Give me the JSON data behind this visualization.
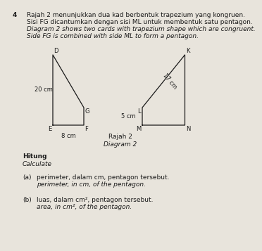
{
  "title_number": "4",
  "title_text_line1": "Rajah 2 menunjukkan dua kad berbentuk trapezium yang kongruen.",
  "title_text_line2": "Sisi FG dicantumkan dengan sisi ML untuk membentuk satu pentagon.",
  "title_text_line3": "Diagram 2 shows two cards with trapezium shape which are congruent.",
  "title_text_line4": "Side FG is combined with side ML to form a pentagon.",
  "caption_line1": "Rajah 2",
  "caption_line2": "Diagram 2",
  "question_hitung": "Hitung",
  "question_calculate": "Calculate",
  "qa_label": "(a)",
  "qa_text1": "perimeter, dalam cm, pentagon tersebut.",
  "qa_text2": "perimeter, in cm, of the pentagon.",
  "qb_label": "(b)",
  "qb_text1": "luas, dalam cm², pentagon tersebut.",
  "qb_text2": "area, in cm², of the pentagon.",
  "label_20cm": "20 cm",
  "label_8cm": "8 cm",
  "label_17cm": "17 cm",
  "label_5cm": "5 cm",
  "label_D": "D",
  "label_E": "E",
  "label_F": "F",
  "label_G": "G",
  "label_K": "K",
  "label_L": "L",
  "label_M": "M",
  "label_N": "N",
  "bg_color": "#e8e4dc",
  "line_color": "#1a1a1a"
}
